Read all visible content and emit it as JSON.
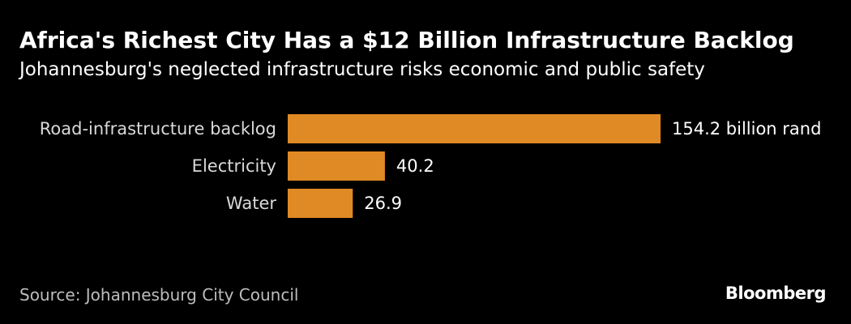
{
  "header": {
    "title": "Africa's Richest City Has a $12 Billion Infrastructure Backlog",
    "subtitle": "Johannesburg's neglected infrastructure risks economic and public safety"
  },
  "chart_data": {
    "type": "bar",
    "orientation": "horizontal",
    "title": "Africa's Richest City Has a $12 Billion Infrastructure Backlog",
    "subtitle": "Johannesburg's neglected infrastructure risks economic and public safety",
    "categories": [
      "Road-infrastructure backlog",
      "Electricity",
      "Water"
    ],
    "values": [
      154.2,
      40.2,
      26.9
    ],
    "value_labels": [
      "154.2 billion rand",
      "40.2",
      "26.9"
    ],
    "unit": "billion rand",
    "xlim": [
      0,
      154.2
    ],
    "grid": false,
    "bar_color": "#E08A25"
  },
  "footer": {
    "source": "Source: Johannesburg City Council",
    "brand": "Bloomberg"
  },
  "colors": {
    "background": "#000000",
    "bar": "#E08A25",
    "text": "#FFFFFF",
    "source_text": "#BDBDBD"
  }
}
